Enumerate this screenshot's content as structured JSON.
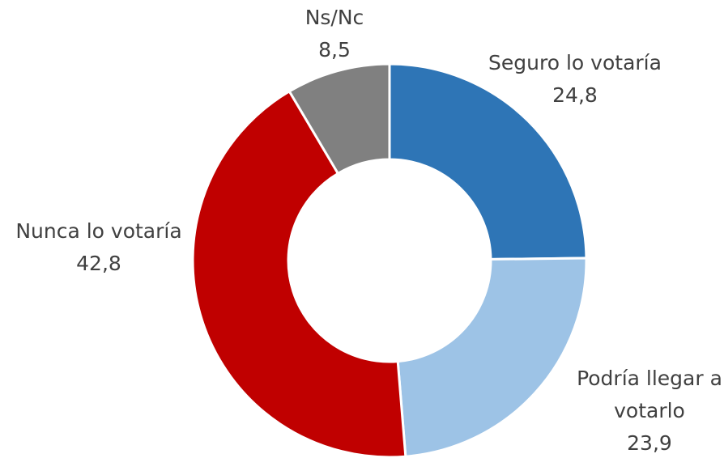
{
  "chart_data": {
    "type": "donut",
    "categories": [
      "Seguro lo votaría",
      "Podría llegar a votarlo",
      "Nunca lo votaría",
      "Ns/Nc"
    ],
    "values": [
      24.8,
      23.9,
      42.8,
      8.5
    ],
    "value_labels": [
      "24,8",
      "23,9",
      "42,8",
      "8,5"
    ],
    "colors": [
      "#2e75b6",
      "#9dc3e6",
      "#c00000",
      "#808080"
    ]
  }
}
